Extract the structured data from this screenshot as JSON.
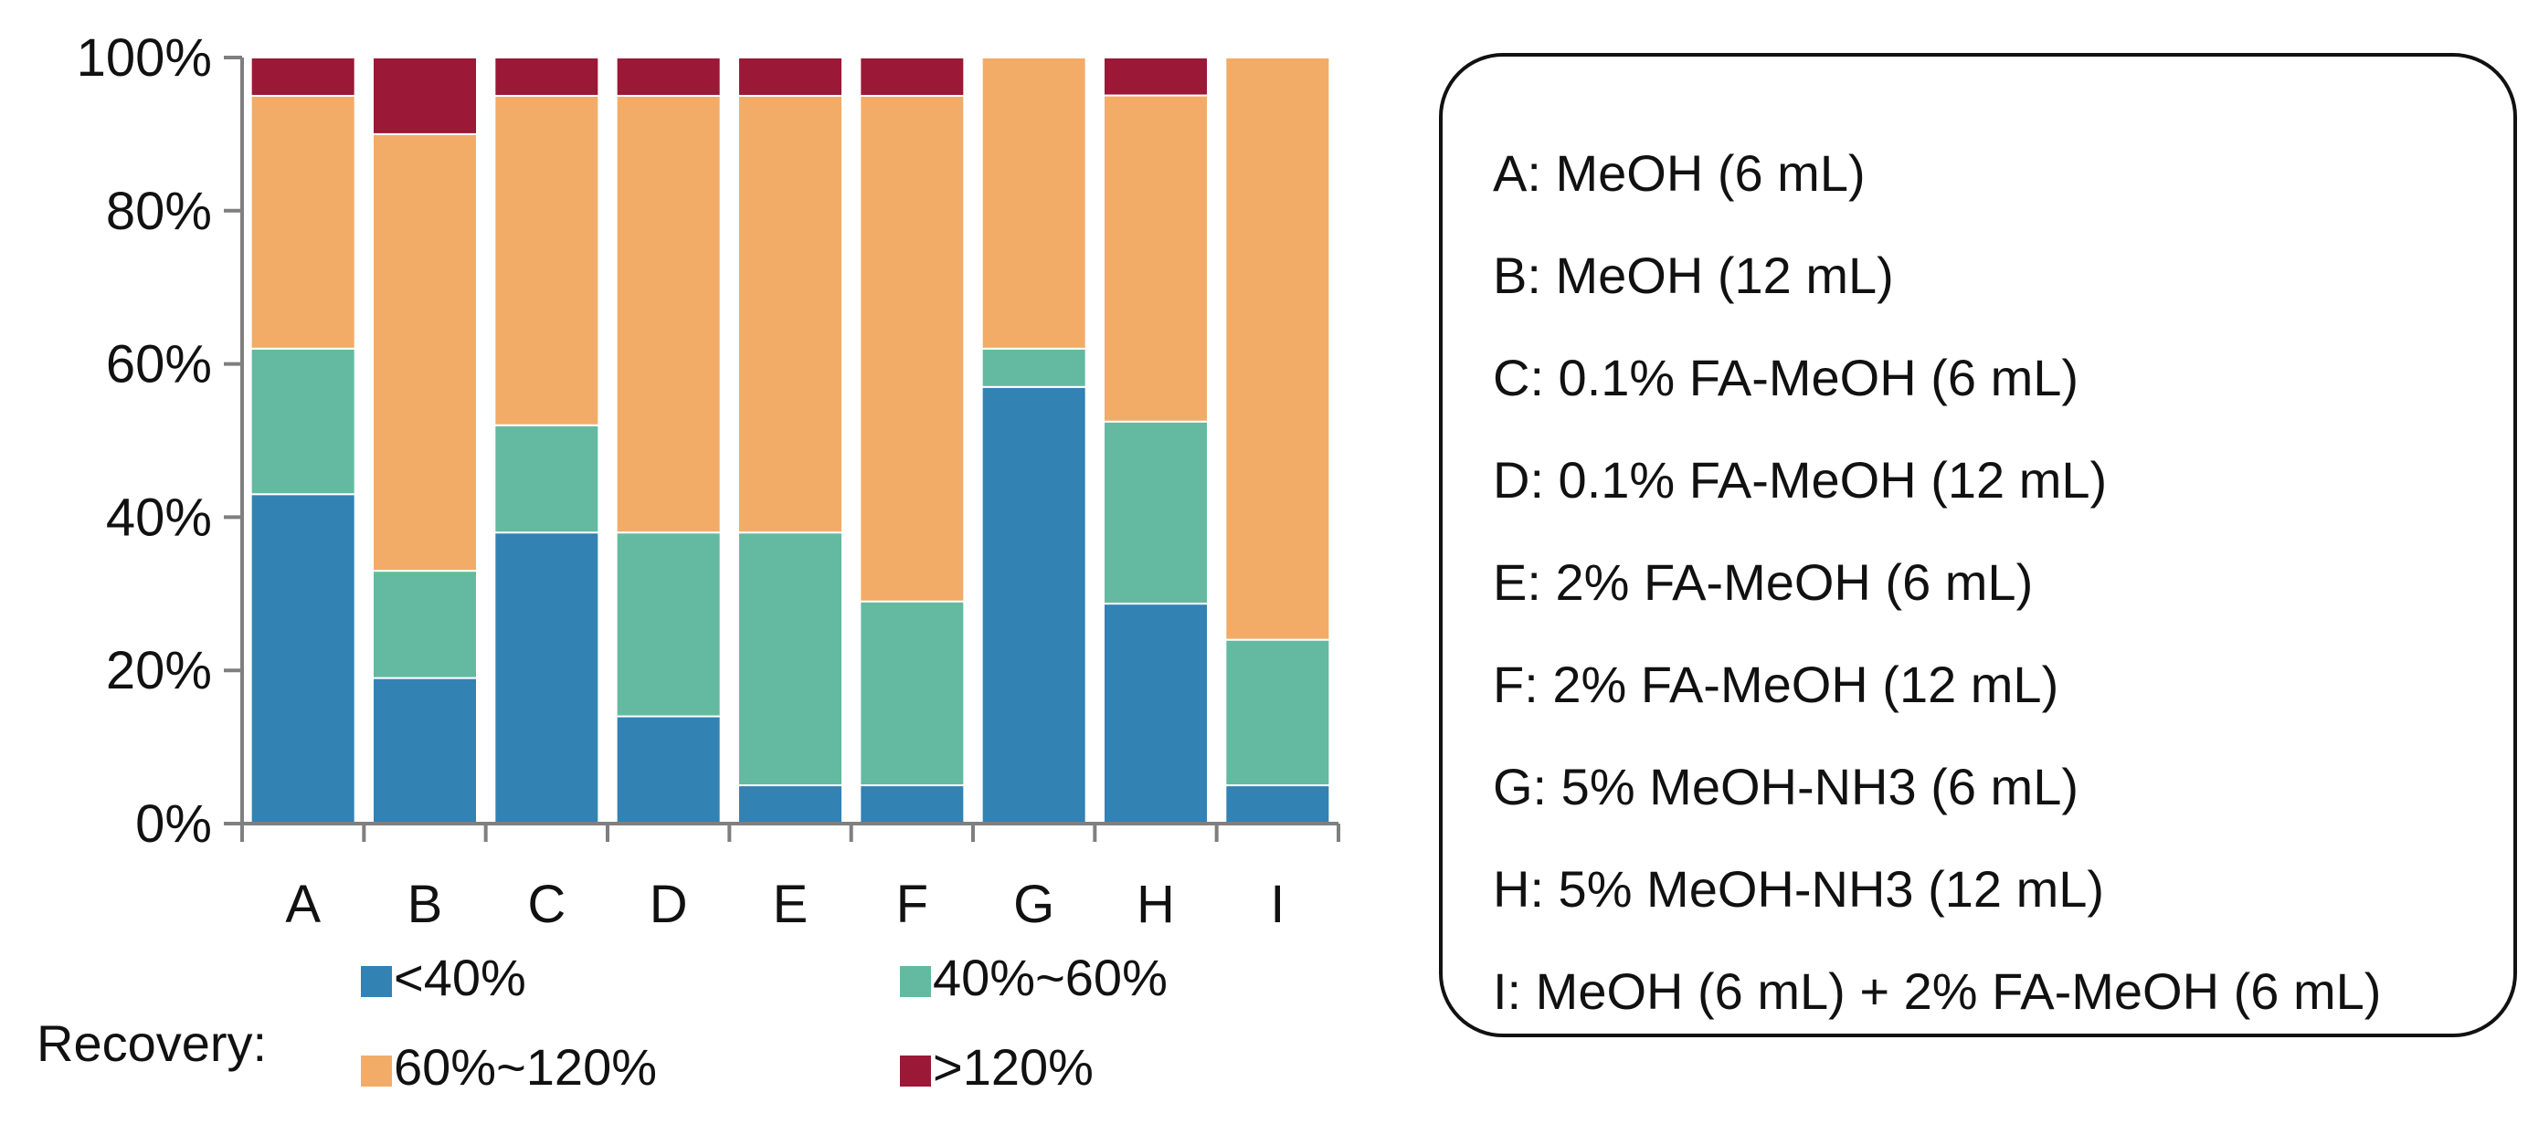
{
  "chart_data": {
    "type": "bar",
    "stacked": true,
    "normalized_percent": true,
    "categories": [
      "A",
      "B",
      "C",
      "D",
      "E",
      "F",
      "G",
      "H",
      "I"
    ],
    "series": [
      {
        "name": "<40%",
        "color": "#3282B3",
        "values": [
          43,
          19,
          38,
          14,
          5,
          5,
          57,
          29,
          5
        ]
      },
      {
        "name": "40%~60%",
        "color": "#63BAA0",
        "values": [
          19,
          14,
          14,
          24,
          33,
          24,
          5,
          24,
          19
        ]
      },
      {
        "name": "60%~120%",
        "color": "#F2AC68",
        "values": [
          33,
          57,
          43,
          57,
          57,
          66,
          38,
          43,
          76
        ]
      },
      {
        "name": ">120%",
        "color": "#9B1837",
        "values": [
          5,
          10,
          5,
          5,
          5,
          5,
          0,
          5,
          0
        ]
      }
    ],
    "ylim": [
      0,
      100
    ],
    "yticks": [
      "0%",
      "20%",
      "40%",
      "60%",
      "80%",
      "100%"
    ],
    "legend_title": "Recovery:",
    "legend_position": "bottom",
    "grid": false,
    "annotation_box": {
      "position": "right",
      "entries": [
        "A: MeOH (6 mL)",
        "B: MeOH (12 mL)",
        "C: 0.1% FA-MeOH (6 mL)",
        "D: 0.1% FA-MeOH (12 mL)",
        "E: 2% FA-MeOH (6 mL)",
        "F: 2% FA-MeOH (12 mL)",
        "G: 5% MeOH-NH3 (6 mL)",
        "H: 5% MeOH-NH3 (12 mL)",
        "I: MeOH (6 mL) + 2% FA-MeOH (6 mL)"
      ]
    }
  },
  "colors": {
    "axis": "#7F7F7F",
    "text": "#111111",
    "bar_divider": "#FFFFFF"
  }
}
